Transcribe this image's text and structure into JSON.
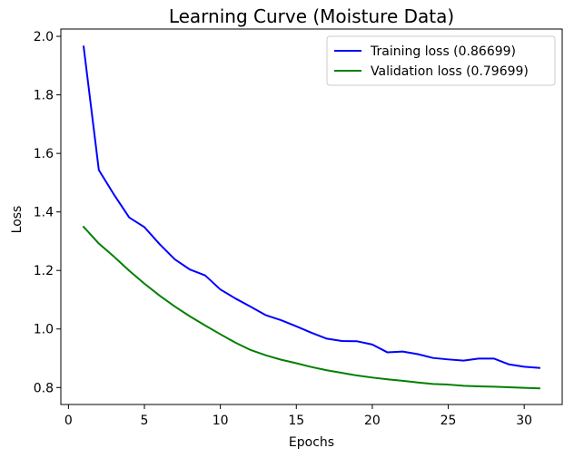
{
  "chart_data": {
    "type": "line",
    "title": "Learning Curve (Moisture Data)",
    "xlabel": "Epochs",
    "ylabel": "Loss",
    "xlim": [
      -0.5,
      32.5
    ],
    "ylim": [
      0.742,
      2.025
    ],
    "xticks": [
      0,
      5,
      10,
      15,
      20,
      25,
      30
    ],
    "yticks": [
      0.8,
      1.0,
      1.2,
      1.4,
      1.6,
      1.8,
      2.0
    ],
    "xtick_labels": [
      "0",
      "5",
      "10",
      "15",
      "20",
      "25",
      "30"
    ],
    "ytick_labels": [
      "0.8",
      "1.0",
      "1.2",
      "1.4",
      "1.6",
      "1.8",
      "2.0"
    ],
    "grid": false,
    "legend": "top-right",
    "x": [
      1,
      2,
      3,
      4,
      5,
      6,
      7,
      8,
      9,
      10,
      11,
      12,
      13,
      14,
      15,
      16,
      17,
      18,
      19,
      20,
      21,
      22,
      23,
      24,
      25,
      26,
      27,
      28,
      29,
      30,
      31
    ],
    "series": [
      {
        "name": "Training loss (0.86699)",
        "color": "#0000ff",
        "values": [
          1.965,
          1.543,
          1.459,
          1.381,
          1.348,
          1.29,
          1.238,
          1.203,
          1.183,
          1.135,
          1.104,
          1.076,
          1.047,
          1.03,
          1.009,
          0.987,
          0.967,
          0.959,
          0.958,
          0.947,
          0.92,
          0.923,
          0.914,
          0.901,
          0.896,
          0.892,
          0.899,
          0.899,
          0.879,
          0.871,
          0.867
        ]
      },
      {
        "name": "Validation loss (0.79699)",
        "color": "#008000",
        "values": [
          1.349,
          1.292,
          1.247,
          1.199,
          1.155,
          1.114,
          1.077,
          1.043,
          1.012,
          0.982,
          0.953,
          0.928,
          0.91,
          0.895,
          0.883,
          0.87,
          0.859,
          0.85,
          0.841,
          0.834,
          0.828,
          0.823,
          0.817,
          0.812,
          0.81,
          0.806,
          0.804,
          0.803,
          0.801,
          0.799,
          0.797
        ]
      }
    ]
  }
}
